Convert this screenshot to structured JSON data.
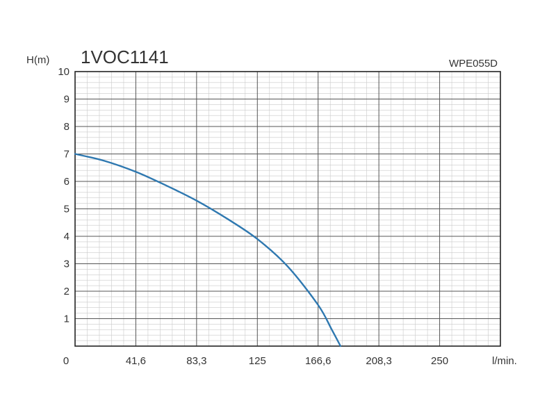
{
  "chart_data": {
    "type": "line",
    "title": "1VOC1141",
    "subtitle": "WPE055D",
    "xlabel": "l/min.",
    "ylabel": "H(m)",
    "xlim": [
      0,
      291.6
    ],
    "ylim": [
      0,
      10
    ],
    "x_ticks": [
      {
        "value": 0,
        "label": "0"
      },
      {
        "value": 41.6,
        "label": "41,6"
      },
      {
        "value": 83.3,
        "label": "83,3"
      },
      {
        "value": 125,
        "label": "125"
      },
      {
        "value": 166.6,
        "label": "166,6"
      },
      {
        "value": 208.3,
        "label": "208,3"
      },
      {
        "value": 250,
        "label": "250"
      }
    ],
    "y_ticks": [
      {
        "value": 1,
        "label": "1"
      },
      {
        "value": 2,
        "label": "2"
      },
      {
        "value": 3,
        "label": "3"
      },
      {
        "value": 4,
        "label": "4"
      },
      {
        "value": 5,
        "label": "5"
      },
      {
        "value": 6,
        "label": "6"
      },
      {
        "value": 7,
        "label": "7"
      },
      {
        "value": 8,
        "label": "8"
      },
      {
        "value": 9,
        "label": "9"
      },
      {
        "value": 10,
        "label": "10"
      }
    ],
    "grid": true,
    "series": [
      {
        "color": "#2e78b0",
        "x": [
          0,
          20,
          41.6,
          62.5,
          83.3,
          104,
          125,
          145.8,
          166.6,
          176,
          182
        ],
        "y": [
          7.0,
          6.75,
          6.35,
          5.85,
          5.3,
          4.65,
          3.9,
          2.9,
          1.5,
          0.6,
          0
        ]
      }
    ]
  }
}
